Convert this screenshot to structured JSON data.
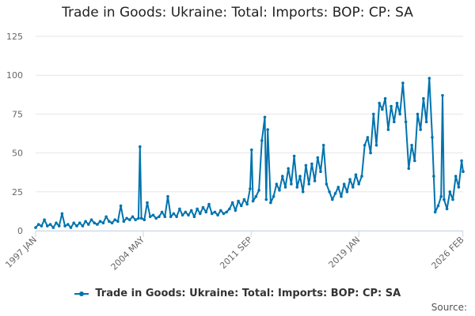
{
  "colors": {
    "series": "#0073ae",
    "grid": "#e6e6e6",
    "axis": "#ccd6eb",
    "text": "#666666"
  },
  "source_label": "Source:",
  "chart_data": {
    "type": "line",
    "title": "Trade in Goods: Ukraine: Total: Imports: BOP: CP: SA",
    "xlabel": "",
    "ylabel": "",
    "xlim": [
      1997.0,
      2026.1
    ],
    "ylim": [
      0,
      125
    ],
    "yticks": [
      0,
      25,
      50,
      75,
      100,
      125
    ],
    "xticks": [
      {
        "label": "1997 JAN",
        "value": 1997.0
      },
      {
        "label": "2004 MAY",
        "value": 2004.33
      },
      {
        "label": "2011 SEP",
        "value": 2011.67
      },
      {
        "label": "2019 JAN",
        "value": 2019.0
      },
      {
        "label": "2026 FEB",
        "value": 2026.08
      }
    ],
    "grid": true,
    "legend_position": "bottom",
    "series": [
      {
        "name": "Trade in Goods: Ukraine: Total: Imports: BOP: CP: SA",
        "points": [
          [
            1997.0,
            2
          ],
          [
            1997.2,
            4
          ],
          [
            1997.4,
            3
          ],
          [
            1997.6,
            7
          ],
          [
            1997.8,
            3
          ],
          [
            1998.0,
            4
          ],
          [
            1998.2,
            2
          ],
          [
            1998.4,
            5
          ],
          [
            1998.6,
            3
          ],
          [
            1998.8,
            11
          ],
          [
            1999.0,
            3
          ],
          [
            1999.2,
            4
          ],
          [
            1999.4,
            2
          ],
          [
            1999.6,
            5
          ],
          [
            1999.8,
            3
          ],
          [
            2000.0,
            5
          ],
          [
            2000.2,
            3
          ],
          [
            2000.4,
            6
          ],
          [
            2000.6,
            4
          ],
          [
            2000.8,
            7
          ],
          [
            2001.0,
            5
          ],
          [
            2001.2,
            4
          ],
          [
            2001.4,
            6
          ],
          [
            2001.6,
            5
          ],
          [
            2001.8,
            9
          ],
          [
            2002.0,
            6
          ],
          [
            2002.2,
            5
          ],
          [
            2002.4,
            7
          ],
          [
            2002.6,
            6
          ],
          [
            2002.8,
            16
          ],
          [
            2003.0,
            6
          ],
          [
            2003.2,
            8
          ],
          [
            2003.4,
            7
          ],
          [
            2003.6,
            9
          ],
          [
            2003.8,
            7
          ],
          [
            2004.0,
            8
          ],
          [
            2004.1,
            54
          ],
          [
            2004.2,
            8
          ],
          [
            2004.4,
            7
          ],
          [
            2004.6,
            18
          ],
          [
            2004.8,
            9
          ],
          [
            2005.0,
            10
          ],
          [
            2005.2,
            8
          ],
          [
            2005.4,
            9
          ],
          [
            2005.6,
            12
          ],
          [
            2005.8,
            9
          ],
          [
            2006.0,
            22
          ],
          [
            2006.2,
            9
          ],
          [
            2006.4,
            11
          ],
          [
            2006.6,
            9
          ],
          [
            2006.8,
            14
          ],
          [
            2007.0,
            10
          ],
          [
            2007.2,
            12
          ],
          [
            2007.4,
            10
          ],
          [
            2007.6,
            13
          ],
          [
            2007.8,
            9
          ],
          [
            2008.0,
            14
          ],
          [
            2008.2,
            11
          ],
          [
            2008.4,
            15
          ],
          [
            2008.6,
            12
          ],
          [
            2008.8,
            17
          ],
          [
            2009.0,
            11
          ],
          [
            2009.2,
            12
          ],
          [
            2009.4,
            10
          ],
          [
            2009.6,
            13
          ],
          [
            2009.8,
            11
          ],
          [
            2010.0,
            12
          ],
          [
            2010.2,
            14
          ],
          [
            2010.4,
            18
          ],
          [
            2010.6,
            13
          ],
          [
            2010.8,
            19
          ],
          [
            2011.0,
            16
          ],
          [
            2011.2,
            20
          ],
          [
            2011.4,
            17
          ],
          [
            2011.6,
            27
          ],
          [
            2011.7,
            52
          ],
          [
            2011.8,
            19
          ],
          [
            2012.0,
            22
          ],
          [
            2012.2,
            26
          ],
          [
            2012.4,
            58
          ],
          [
            2012.6,
            73
          ],
          [
            2012.7,
            20
          ],
          [
            2012.8,
            65
          ],
          [
            2013.0,
            18
          ],
          [
            2013.2,
            22
          ],
          [
            2013.4,
            30
          ],
          [
            2013.6,
            26
          ],
          [
            2013.8,
            35
          ],
          [
            2014.0,
            28
          ],
          [
            2014.2,
            40
          ],
          [
            2014.4,
            30
          ],
          [
            2014.6,
            48
          ],
          [
            2014.8,
            28
          ],
          [
            2015.0,
            35
          ],
          [
            2015.2,
            25
          ],
          [
            2015.4,
            42
          ],
          [
            2015.6,
            30
          ],
          [
            2015.8,
            43
          ],
          [
            2016.0,
            32
          ],
          [
            2016.2,
            47
          ],
          [
            2016.4,
            38
          ],
          [
            2016.6,
            55
          ],
          [
            2016.8,
            30
          ],
          [
            2017.0,
            25
          ],
          [
            2017.2,
            20
          ],
          [
            2017.4,
            24
          ],
          [
            2017.6,
            28
          ],
          [
            2017.8,
            22
          ],
          [
            2018.0,
            30
          ],
          [
            2018.2,
            25
          ],
          [
            2018.4,
            33
          ],
          [
            2018.6,
            28
          ],
          [
            2018.8,
            36
          ],
          [
            2019.0,
            30
          ],
          [
            2019.2,
            35
          ],
          [
            2019.4,
            55
          ],
          [
            2019.6,
            60
          ],
          [
            2019.8,
            50
          ],
          [
            2020.0,
            75
          ],
          [
            2020.2,
            55
          ],
          [
            2020.4,
            82
          ],
          [
            2020.6,
            78
          ],
          [
            2020.8,
            85
          ],
          [
            2021.0,
            65
          ],
          [
            2021.2,
            80
          ],
          [
            2021.4,
            70
          ],
          [
            2021.6,
            82
          ],
          [
            2021.8,
            75
          ],
          [
            2022.0,
            95
          ],
          [
            2022.2,
            70
          ],
          [
            2022.4,
            40
          ],
          [
            2022.6,
            55
          ],
          [
            2022.8,
            45
          ],
          [
            2023.0,
            75
          ],
          [
            2023.2,
            65
          ],
          [
            2023.4,
            85
          ],
          [
            2023.6,
            70
          ],
          [
            2023.8,
            98
          ],
          [
            2024.0,
            60
          ],
          [
            2024.1,
            35
          ],
          [
            2024.2,
            12
          ],
          [
            2024.4,
            16
          ],
          [
            2024.6,
            22
          ],
          [
            2024.7,
            87
          ],
          [
            2024.8,
            20
          ],
          [
            2025.0,
            14
          ],
          [
            2025.2,
            25
          ],
          [
            2025.4,
            20
          ],
          [
            2025.6,
            35
          ],
          [
            2025.8,
            28
          ],
          [
            2026.0,
            45
          ],
          [
            2026.1,
            38
          ]
        ]
      }
    ]
  }
}
